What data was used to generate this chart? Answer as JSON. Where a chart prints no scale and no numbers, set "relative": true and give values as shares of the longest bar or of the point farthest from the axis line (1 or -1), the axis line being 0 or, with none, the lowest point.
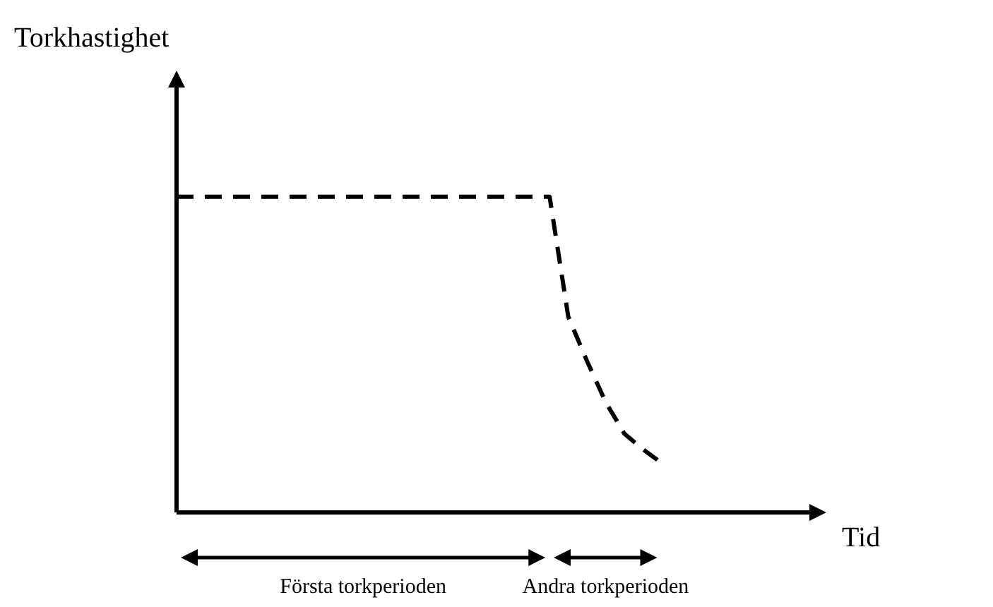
{
  "chart_data": {
    "type": "line",
    "relative": true,
    "xlabel": "Tid",
    "line_style": "dashed",
    "marker": "none",
    "legend": false,
    "grid": false,
    "categories": [
      null,
      null,
      null,
      null,
      null,
      null,
      null,
      null,
      null,
      null,
      null,
      null,
      null,
      null,
      null,
      null,
      null,
      null,
      null,
      null,
      null,
      null,
      null,
      null,
      null,
      null,
      null,
      null,
      null,
      null,
      null,
      null,
      null,
      null,
      null
    ],
    "series": [
      {
        "color": "#000000",
        "values": [
          1,
          1,
          1,
          1,
          1,
          1,
          1,
          1,
          1,
          1,
          1,
          1,
          1,
          1,
          1,
          1,
          1,
          1,
          1,
          1,
          1,
          0.62,
          0.48,
          0.35,
          0.25,
          0.2,
          0.157,
          null,
          null,
          null,
          null,
          null,
          null,
          null,
          null
        ]
      }
    ],
    "annotations": [
      "Torkhastighet",
      "Första torkperioden",
      "Andra torkperioden"
    ]
  }
}
